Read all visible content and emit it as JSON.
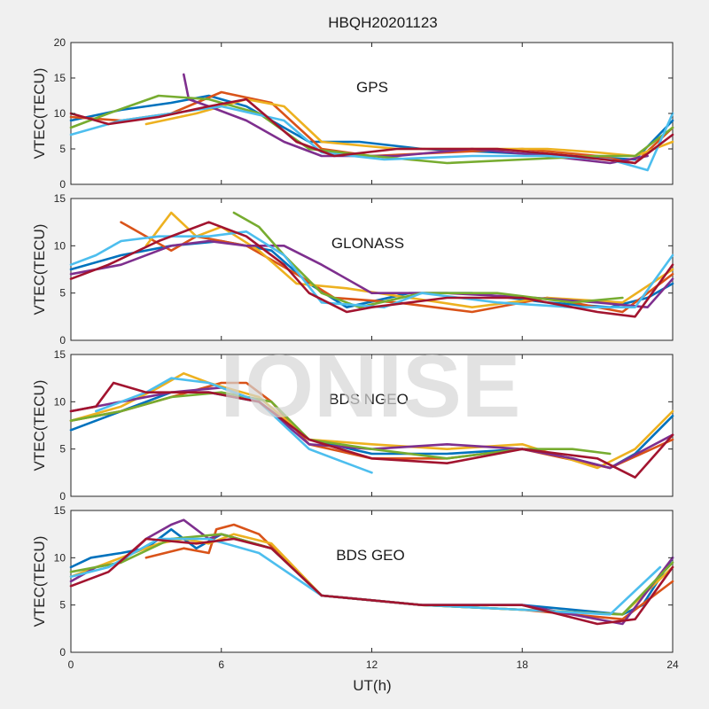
{
  "figure": {
    "title": "HBQH20201123",
    "watermark": "IONISE",
    "xlabel": "UT(h)"
  },
  "chart_data": [
    {
      "type": "line",
      "label": "GPS",
      "xlim": [
        0,
        24
      ],
      "ylim": [
        0,
        20
      ],
      "xticks": [
        0,
        6,
        12,
        18,
        24
      ],
      "yticks": [
        0,
        5,
        10,
        15,
        20
      ],
      "ylabel": "VTEC(TECU)",
      "series": [
        {
          "color": "#0072BD",
          "x": [
            0,
            2,
            4,
            5.5,
            7,
            9.5,
            11.5,
            14,
            17,
            20,
            22.5,
            24
          ],
          "y": [
            9,
            10.5,
            11.5,
            12.5,
            11,
            6,
            6,
            5,
            4.5,
            4,
            3.5,
            9
          ]
        },
        {
          "color": "#D95319",
          "x": [
            0,
            2,
            4,
            6,
            8,
            10,
            12,
            15,
            18,
            21,
            22.5,
            24
          ],
          "y": [
            9.5,
            9,
            10,
            13,
            11.5,
            5,
            4,
            4.5,
            5,
            4,
            3,
            8
          ]
        },
        {
          "color": "#EDB120",
          "x": [
            3,
            5,
            7,
            8.5,
            10,
            13,
            16,
            19,
            21,
            22.5,
            24
          ],
          "y": [
            8.5,
            10,
            12,
            11,
            6,
            5,
            5,
            5,
            4.5,
            4,
            6
          ]
        },
        {
          "color": "#7E2F8E",
          "x": [
            4.5,
            4.7,
            5.5,
            7,
            8.5,
            10,
            13,
            16,
            19,
            21.5,
            23
          ],
          "y": [
            15.5,
            12,
            11,
            9,
            6,
            4,
            4,
            5,
            4,
            3,
            4
          ]
        },
        {
          "color": "#77AC30",
          "x": [
            0,
            1.5,
            3.5,
            5.5,
            7.5,
            9.5,
            12,
            15,
            18,
            21,
            22.5,
            24
          ],
          "y": [
            8,
            10,
            12.5,
            12,
            10,
            5,
            4,
            3,
            3.5,
            4,
            4,
            8
          ]
        },
        {
          "color": "#4DBEEE",
          "x": [
            0,
            2,
            4,
            6,
            8.5,
            10,
            12.5,
            16,
            19,
            21.5,
            23,
            24
          ],
          "y": [
            7,
            9,
            10,
            11,
            9,
            4.5,
            3.5,
            4,
            4,
            3.5,
            2,
            10
          ]
        },
        {
          "color": "#A2142F",
          "x": [
            0,
            1.5,
            3.5,
            5.5,
            7,
            9,
            10.5,
            13,
            17,
            20,
            22.5,
            24
          ],
          "y": [
            10,
            8.5,
            9.5,
            11,
            12,
            6,
            4,
            5,
            5,
            4,
            3,
            7
          ]
        }
      ]
    },
    {
      "type": "line",
      "label": "GLONASS",
      "xlim": [
        0,
        24
      ],
      "ylim": [
        0,
        15
      ],
      "xticks": [
        0,
        6,
        12,
        18,
        24
      ],
      "yticks": [
        0,
        5,
        10,
        15
      ],
      "ylabel": "VTEC(TECU)",
      "series": [
        {
          "color": "#0072BD",
          "x": [
            0,
            2,
            4,
            6,
            8,
            9.5,
            11,
            13.5,
            16,
            19,
            21.5,
            23,
            24
          ],
          "y": [
            7.5,
            9,
            10,
            10.5,
            9.5,
            6,
            3.5,
            5,
            5,
            4,
            3.5,
            4.5,
            6
          ]
        },
        {
          "color": "#D95319",
          "x": [
            2,
            3,
            4,
            5,
            7,
            9,
            10.5,
            13,
            16,
            19,
            22,
            24
          ],
          "y": [
            12.5,
            11,
            9.5,
            11,
            10,
            7,
            4.5,
            4,
            3,
            4.5,
            3,
            7
          ]
        },
        {
          "color": "#EDB120",
          "x": [
            3,
            4,
            5,
            6,
            7.5,
            9,
            11,
            13.5,
            16,
            19,
            22,
            24
          ],
          "y": [
            10,
            13.5,
            11,
            12,
            9.5,
            6,
            5.5,
            4.5,
            3.5,
            4.5,
            4,
            7.5
          ]
        },
        {
          "color": "#7E2F8E",
          "x": [
            0,
            2,
            4,
            5.5,
            7,
            8.5,
            10,
            12,
            15,
            18.5,
            21,
            23,
            24
          ],
          "y": [
            7,
            8,
            10,
            10.5,
            10,
            10,
            8,
            5,
            5,
            4.5,
            4,
            3.5,
            6.5
          ]
        },
        {
          "color": "#77AC30",
          "x": [
            6.5,
            7.5,
            8.5,
            10,
            11.5,
            14,
            17,
            20,
            22
          ],
          "y": [
            13.5,
            12,
            9,
            5,
            3.5,
            5,
            5,
            4,
            4.5
          ]
        },
        {
          "color": "#4DBEEE",
          "x": [
            0,
            1,
            2,
            3.5,
            5.5,
            7,
            8.5,
            10,
            12.5,
            14,
            17,
            20,
            22.5,
            24
          ],
          "y": [
            8,
            9,
            10.5,
            11,
            11,
            11.5,
            9,
            4,
            3.5,
            5,
            4,
            3.5,
            3.5,
            9
          ]
        },
        {
          "color": "#A2142F",
          "x": [
            0,
            1.5,
            3.5,
            5.5,
            7,
            8.5,
            9.5,
            11,
            12,
            15,
            18,
            21,
            22.5,
            24
          ],
          "y": [
            6.5,
            8,
            10.5,
            12.5,
            11,
            8,
            5,
            3,
            3.5,
            4.5,
            4.5,
            3,
            2.5,
            8
          ]
        }
      ]
    },
    {
      "type": "line",
      "label": "BDS NGEO",
      "xlim": [
        0,
        24
      ],
      "ylim": [
        0,
        15
      ],
      "xticks": [
        0,
        6,
        12,
        18,
        24
      ],
      "yticks": [
        0,
        5,
        10,
        15
      ],
      "ylabel": "VTEC(TECU)",
      "series": [
        {
          "color": "#0072BD",
          "x": [
            0,
            2,
            4,
            5.5,
            7.5,
            9.5,
            12,
            15,
            18,
            20,
            21.5,
            22.5,
            24
          ],
          "y": [
            7,
            9,
            11,
            11,
            10,
            6,
            4.5,
            4.5,
            5,
            4,
            3,
            4.5,
            8.5
          ]
        },
        {
          "color": "#D95319",
          "x": [
            0,
            2,
            4,
            6,
            7,
            8,
            9.5,
            12,
            15,
            18,
            21.5,
            24
          ],
          "y": [
            8,
            9,
            10.5,
            12,
            12,
            10,
            5.5,
            4,
            4,
            5,
            3,
            6
          ]
        },
        {
          "color": "#EDB120",
          "x": [
            0,
            2,
            3.5,
            4.5,
            5.5,
            7.5,
            9.5,
            12,
            15,
            18,
            21,
            22.5,
            24
          ],
          "y": [
            8,
            9.5,
            11.5,
            13,
            12,
            10.5,
            6,
            5.5,
            5,
            5.5,
            3,
            5,
            9
          ]
        },
        {
          "color": "#7E2F8E",
          "x": [
            0,
            2,
            4,
            6,
            7.5,
            9.5,
            12,
            15,
            18,
            20,
            21.5,
            24
          ],
          "y": [
            9,
            10,
            11,
            11.5,
            10,
            5.5,
            5,
            5.5,
            5,
            4,
            3,
            6.5
          ]
        },
        {
          "color": "#77AC30",
          "x": [
            0,
            2,
            4,
            6,
            8,
            9.5,
            12,
            15,
            18,
            20,
            21.5
          ],
          "y": [
            8,
            9,
            10.5,
            11,
            10,
            6,
            5,
            4,
            5,
            5,
            4.5
          ]
        },
        {
          "color": "#4DBEEE",
          "x": [
            1,
            3,
            4,
            5.5,
            7.5,
            9.5,
            11,
            12
          ],
          "y": [
            9,
            11,
            12.5,
            12,
            10,
            5,
            3.5,
            2.5
          ]
        },
        {
          "color": "#A2142F",
          "x": [
            0,
            1,
            1.7,
            3,
            5.5,
            7.5,
            9.5,
            12,
            15,
            18,
            21,
            22.5,
            24
          ],
          "y": [
            9,
            9.5,
            12,
            11,
            11,
            10,
            6,
            4,
            3.5,
            5,
            4,
            2,
            6.5
          ]
        }
      ]
    },
    {
      "type": "line",
      "label": "BDS GEO",
      "xlim": [
        0,
        24
      ],
      "ylim": [
        0,
        15
      ],
      "xticks": [
        0,
        6,
        12,
        18,
        24
      ],
      "yticks": [
        0,
        5,
        10,
        15
      ],
      "ylabel": "VTEC(TECU)",
      "series": [
        {
          "color": "#0072BD",
          "x": [
            0,
            0.8,
            2,
            3,
            4,
            5,
            6,
            8,
            10,
            14,
            18,
            22,
            22.8,
            24
          ],
          "y": [
            9,
            10,
            10.5,
            11,
            13,
            11,
            12.5,
            11,
            6,
            5,
            5,
            4,
            5,
            10
          ]
        },
        {
          "color": "#D95319",
          "x": [
            3,
            4.5,
            5.5,
            5.8,
            6.5,
            7.5,
            10,
            14,
            18,
            22,
            24
          ],
          "y": [
            10,
            11,
            10.5,
            13,
            13.5,
            12.5,
            6,
            5,
            4.5,
            3.5,
            7.5
          ]
        },
        {
          "color": "#EDB120",
          "x": [
            0,
            2,
            3.5,
            4.5,
            5.5,
            6.5,
            8,
            10,
            14,
            18,
            22,
            24
          ],
          "y": [
            8,
            10,
            11.5,
            12,
            11.5,
            12.5,
            11.5,
            6,
            5,
            4.5,
            4,
            9
          ]
        },
        {
          "color": "#7E2F8E",
          "x": [
            0,
            1,
            2,
            3,
            4,
            4.5,
            5.5,
            6,
            8,
            10,
            14,
            18,
            22,
            24
          ],
          "y": [
            7.5,
            9,
            9.5,
            12,
            13.5,
            14,
            12,
            12.5,
            11,
            6,
            5,
            5,
            3,
            10
          ]
        },
        {
          "color": "#77AC30",
          "x": [
            0,
            2,
            4,
            6,
            8,
            10,
            14,
            18,
            22,
            24
          ],
          "y": [
            8.5,
            9.5,
            12,
            12.5,
            11,
            6,
            5,
            4.5,
            4,
            9.5
          ]
        },
        {
          "color": "#4DBEEE",
          "x": [
            0,
            1.5,
            3.5,
            5.5,
            7.5,
            10,
            14,
            18,
            21.5,
            23.5
          ],
          "y": [
            8,
            9,
            12,
            12,
            10.5,
            6,
            5,
            4.5,
            4,
            9
          ]
        },
        {
          "color": "#A2142F",
          "x": [
            0,
            1.5,
            3,
            5,
            6.5,
            8,
            10,
            14,
            18,
            21,
            22.5,
            24
          ],
          "y": [
            7,
            8.5,
            12,
            11.5,
            12,
            11,
            6,
            5,
            5,
            3,
            3.5,
            9
          ]
        }
      ]
    }
  ]
}
